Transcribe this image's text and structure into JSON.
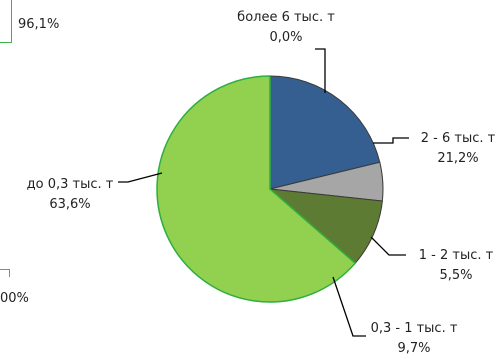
{
  "chart_data": {
    "type": "pie",
    "slices": [
      {
        "label": "более 6 тыс. т",
        "value": 0.0,
        "value_label": "0,0%",
        "color": "#1a5c9a"
      },
      {
        "label": "2 - 6 тыс. т",
        "value": 21.2,
        "value_label": "21,2%",
        "color": "#365f91"
      },
      {
        "label": "1 - 2 тыс. т",
        "value": 5.5,
        "value_label": "5,5%",
        "color": "#a6a6a6"
      },
      {
        "label": "0,3 - 1 тыс. т",
        "value": 9.7,
        "value_label": "9,7%",
        "color": "#5e7b33"
      },
      {
        "label": "до 0,3 тыс. т",
        "value": 63.6,
        "value_label": "63,6%",
        "color": "#92d050"
      }
    ],
    "start_angle_deg": 0,
    "direction": "clockwise"
  },
  "left_fragment": {
    "top_value": "96,1%",
    "bottom_value": "00%"
  }
}
